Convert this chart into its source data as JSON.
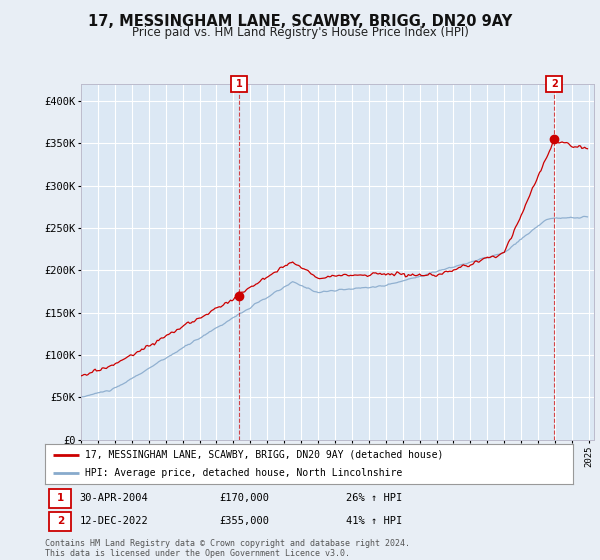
{
  "title": "17, MESSINGHAM LANE, SCAWBY, BRIGG, DN20 9AY",
  "subtitle": "Price paid vs. HM Land Registry's House Price Index (HPI)",
  "ylim": [
    0,
    420000
  ],
  "yticks": [
    0,
    50000,
    100000,
    150000,
    200000,
    250000,
    300000,
    350000,
    400000
  ],
  "ytick_labels": [
    "£0",
    "£50K",
    "£100K",
    "£150K",
    "£200K",
    "£250K",
    "£300K",
    "£350K",
    "£400K"
  ],
  "bg_color": "#e8eef5",
  "plot_bg": "#dce8f4",
  "grid_color": "#ffffff",
  "sale1_date": 2004.33,
  "sale1_price": 170000,
  "sale1_label": "1",
  "sale2_date": 2022.95,
  "sale2_price": 355000,
  "sale2_label": "2",
  "legend_line1": "17, MESSINGHAM LANE, SCAWBY, BRIGG, DN20 9AY (detached house)",
  "legend_line2": "HPI: Average price, detached house, North Lincolnshire",
  "footer": "Contains HM Land Registry data © Crown copyright and database right 2024.\nThis data is licensed under the Open Government Licence v3.0.",
  "red_color": "#cc0000",
  "blue_color": "#88aacc"
}
